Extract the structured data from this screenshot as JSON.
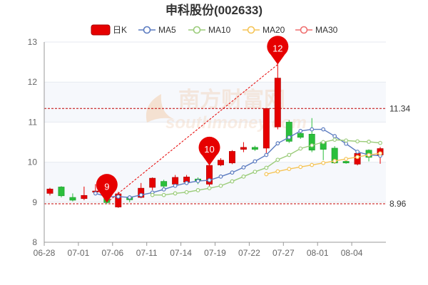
{
  "chart_data": {
    "type": "candlestick",
    "title": "申科股份(002633)",
    "legend": {
      "placement": "top-center",
      "items": [
        {
          "name": "日K",
          "color": "#e60000",
          "marker": "box"
        },
        {
          "name": "MA5",
          "color": "#5b7bc0",
          "marker": "circle"
        },
        {
          "name": "MA10",
          "color": "#9bcc7a",
          "marker": "circle"
        },
        {
          "name": "MA20",
          "color": "#f5c456",
          "marker": "circle"
        },
        {
          "name": "MA30",
          "color": "#ef6f6f",
          "marker": "circle"
        }
      ]
    },
    "ylim": [
      8,
      13
    ],
    "yticks": [
      8,
      9,
      10,
      11,
      12,
      13
    ],
    "xtick_labels": [
      "06-28",
      "07-01",
      "07-06",
      "07-11",
      "07-14",
      "07-19",
      "07-22",
      "07-27",
      "08-01",
      "08-04"
    ],
    "candles": [
      {
        "o": 9.22,
        "c": 9.33,
        "h": 9.36,
        "l": 9.17
      },
      {
        "o": 9.38,
        "c": 9.16,
        "h": 9.4,
        "l": 9.12
      },
      {
        "o": 9.12,
        "c": 9.05,
        "h": 9.22,
        "l": 9.02
      },
      {
        "o": 9.09,
        "c": 9.17,
        "h": 9.39,
        "l": 9.05
      },
      {
        "o": 9.25,
        "c": 9.28,
        "h": 9.45,
        "l": 9.2
      },
      {
        "o": 9.25,
        "c": 8.99,
        "h": 9.28,
        "l": 8.95
      },
      {
        "o": 8.88,
        "c": 9.21,
        "h": 9.26,
        "l": 8.86
      },
      {
        "o": 9.12,
        "c": 9.06,
        "h": 9.17,
        "l": 9.0
      },
      {
        "o": 9.12,
        "c": 9.35,
        "h": 9.48,
        "l": 9.1
      },
      {
        "o": 9.37,
        "c": 9.6,
        "h": 9.62,
        "l": 9.3
      },
      {
        "o": 9.52,
        "c": 9.4,
        "h": 9.56,
        "l": 9.35
      },
      {
        "o": 9.45,
        "c": 9.62,
        "h": 9.68,
        "l": 9.4
      },
      {
        "o": 9.5,
        "c": 9.63,
        "h": 9.68,
        "l": 9.46
      },
      {
        "o": 9.58,
        "c": 9.53,
        "h": 9.62,
        "l": 9.45
      },
      {
        "o": 9.45,
        "c": 9.92,
        "h": 9.98,
        "l": 9.4
      },
      {
        "o": 9.93,
        "c": 10.05,
        "h": 10.1,
        "l": 9.9
      },
      {
        "o": 9.98,
        "c": 10.27,
        "h": 10.3,
        "l": 9.95
      },
      {
        "o": 10.32,
        "c": 10.37,
        "h": 10.5,
        "l": 10.25
      },
      {
        "o": 10.37,
        "c": 10.32,
        "h": 10.41,
        "l": 10.28
      },
      {
        "o": 10.35,
        "c": 11.34,
        "h": 11.34,
        "l": 10.17
      },
      {
        "o": 10.88,
        "c": 12.1,
        "h": 12.44,
        "l": 10.82
      },
      {
        "o": 11.0,
        "c": 10.52,
        "h": 11.05,
        "l": 10.48
      },
      {
        "o": 10.72,
        "c": 10.62,
        "h": 10.76,
        "l": 10.58
      },
      {
        "o": 10.7,
        "c": 10.3,
        "h": 11.1,
        "l": 10.25
      },
      {
        "o": 10.5,
        "c": 10.32,
        "h": 10.55,
        "l": 10.05
      },
      {
        "o": 10.35,
        "c": 9.98,
        "h": 10.4,
        "l": 9.96
      },
      {
        "o": 10.02,
        "c": 9.98,
        "h": 10.05,
        "l": 9.96
      },
      {
        "o": 9.95,
        "c": 10.22,
        "h": 10.27,
        "l": 9.92
      },
      {
        "o": 10.3,
        "c": 10.12,
        "h": 10.32,
        "l": 10.02
      },
      {
        "o": 10.18,
        "c": 10.34,
        "h": 10.38,
        "l": 9.96
      }
    ],
    "ma_lines": {
      "MA5": [
        null,
        null,
        null,
        null,
        9.22,
        9.14,
        9.14,
        9.12,
        9.18,
        9.24,
        9.32,
        9.41,
        9.48,
        9.53,
        9.55,
        9.64,
        9.74,
        9.87,
        10.02,
        10.18,
        10.47,
        10.62,
        10.78,
        10.82,
        10.82,
        10.65,
        10.46,
        10.26,
        10.18,
        10.16
      ],
      "MA10": [
        null,
        null,
        null,
        null,
        null,
        null,
        null,
        null,
        null,
        9.18,
        9.18,
        9.22,
        9.25,
        9.3,
        9.35,
        9.41,
        9.52,
        9.64,
        9.76,
        9.86,
        10.06,
        10.18,
        10.34,
        10.42,
        10.5,
        10.56,
        10.54,
        10.52,
        10.51,
        10.48
      ],
      "MA20": [
        null,
        null,
        null,
        null,
        null,
        null,
        null,
        null,
        null,
        null,
        null,
        null,
        null,
        null,
        null,
        null,
        null,
        null,
        null,
        9.7,
        9.77,
        9.83,
        9.88,
        9.93,
        9.98,
        10.03,
        10.08,
        10.13,
        10.18,
        10.22
      ],
      "MA30": []
    },
    "reference_lines": [
      {
        "value": 11.34,
        "label": "11.34",
        "style": "dashed",
        "color": "#c00000"
      },
      {
        "value": 8.96,
        "label": "8.96",
        "style": "dashed",
        "color": "#c00000"
      }
    ],
    "annotations": [
      {
        "label": "9",
        "index": 5,
        "value": 8.99,
        "type": "pin",
        "color": "#e60000"
      },
      {
        "label": "10",
        "index": 14,
        "value": 9.92,
        "type": "pin",
        "color": "#e60000"
      },
      {
        "label": "12",
        "index": 20,
        "value": 12.44,
        "type": "pin",
        "color": "#e60000"
      }
    ],
    "trend_line": {
      "from": {
        "index": 5,
        "value": 8.99
      },
      "to": {
        "index": 20,
        "value": 12.44
      },
      "style": "dashed",
      "color": "#e60000"
    },
    "grid": true,
    "colors": {
      "up": "#e60000",
      "down": "#2bbf3b",
      "grid": "#e6e9f0",
      "axis": "#999999"
    }
  },
  "watermark": {
    "text": "南方财富网",
    "subtext": "southmoney.com"
  }
}
